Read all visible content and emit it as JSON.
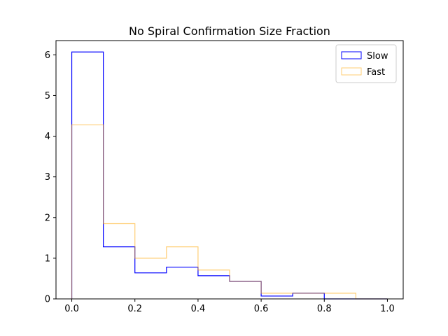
{
  "chart_data": {
    "type": "bar",
    "subtype": "step-histogram",
    "title": "No Spiral Confirmation Size Fraction",
    "xlabel": "",
    "ylabel": "",
    "xlim": [
      -0.05,
      1.05
    ],
    "ylim": [
      0,
      6.35
    ],
    "xticks": [
      0.0,
      0.2,
      0.4,
      0.6,
      0.8,
      1.0
    ],
    "xtick_labels": [
      "0.0",
      "0.2",
      "0.4",
      "0.6",
      "0.8",
      "1.0"
    ],
    "yticks": [
      0,
      1,
      2,
      3,
      4,
      5,
      6
    ],
    "ytick_labels": [
      "0",
      "1",
      "2",
      "3",
      "4",
      "5",
      "6"
    ],
    "bin_edges": [
      0.0,
      0.1,
      0.2,
      0.3,
      0.4,
      0.5,
      0.6,
      0.7,
      0.8,
      0.9,
      1.0
    ],
    "grid": false,
    "legend_position": "top-right",
    "series": [
      {
        "name": "Slow",
        "color": "#0000ff",
        "values": [
          6.07,
          1.28,
          0.64,
          0.78,
          0.57,
          0.43,
          0.07,
          0.14,
          0.0,
          0.0
        ]
      },
      {
        "name": "Fast",
        "color": "#ffa500",
        "values": [
          4.28,
          1.85,
          1.0,
          1.28,
          0.71,
          0.43,
          0.14,
          0.14,
          0.14,
          0.0
        ]
      }
    ]
  }
}
